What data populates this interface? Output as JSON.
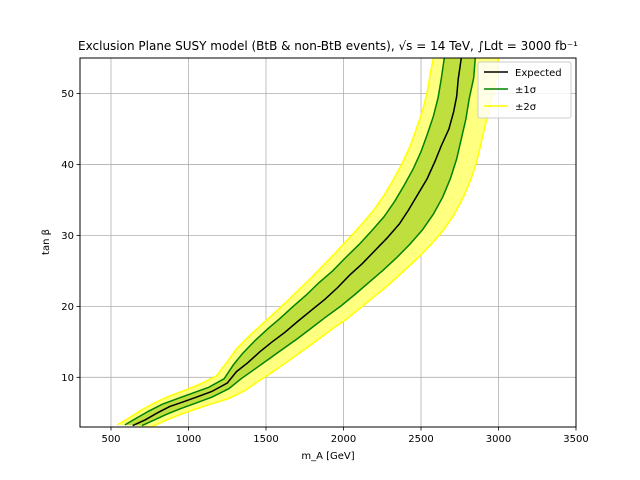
{
  "chart_data": {
    "type": "line",
    "title": "Exclusion Plane SUSY model (BtB & non-BtB events), √s = 14 TeV, ∫Ldt = 3000 fb⁻¹",
    "xlabel": "m_A [GeV]",
    "ylabel": "tan β",
    "xlim": [
      300,
      3500
    ],
    "ylim": [
      3,
      55
    ],
    "xticks": [
      500,
      1000,
      1500,
      2000,
      2500,
      3000,
      3500
    ],
    "yticks": [
      10,
      20,
      30,
      40,
      50
    ],
    "grid": true,
    "legend_position": "top-right",
    "series": [
      {
        "name": "Expected",
        "color": "#000000",
        "points": [
          [
            640,
            3.2
          ],
          [
            720,
            4.0
          ],
          [
            800,
            5.0
          ],
          [
            880,
            5.9
          ],
          [
            960,
            6.5
          ],
          [
            1050,
            7.2
          ],
          [
            1150,
            8.0
          ],
          [
            1250,
            9.2
          ],
          [
            1310,
            10.8
          ],
          [
            1380,
            12.0
          ],
          [
            1460,
            13.6
          ],
          [
            1540,
            15.0
          ],
          [
            1620,
            16.3
          ],
          [
            1700,
            17.8
          ],
          [
            1790,
            19.4
          ],
          [
            1880,
            21.0
          ],
          [
            1960,
            22.6
          ],
          [
            2040,
            24.4
          ],
          [
            2120,
            26.0
          ],
          [
            2200,
            27.8
          ],
          [
            2280,
            29.6
          ],
          [
            2360,
            31.6
          ],
          [
            2420,
            33.6
          ],
          [
            2480,
            35.8
          ],
          [
            2540,
            38.0
          ],
          [
            2590,
            40.4
          ],
          [
            2630,
            42.6
          ],
          [
            2680,
            45.0
          ],
          [
            2710,
            47.4
          ],
          [
            2730,
            49.6
          ],
          [
            2740,
            52.0
          ],
          [
            2760,
            55.0
          ]
        ]
      },
      {
        "name": "±1σ",
        "color": "#008000",
        "fill": "#bfdf3f",
        "lower_edge": [
          [
            700,
            3.2
          ],
          [
            780,
            4.0
          ],
          [
            860,
            4.8
          ],
          [
            950,
            5.6
          ],
          [
            1050,
            6.4
          ],
          [
            1150,
            7.2
          ],
          [
            1260,
            8.4
          ],
          [
            1340,
            9.8
          ],
          [
            1430,
            11.2
          ],
          [
            1520,
            12.6
          ],
          [
            1610,
            14.0
          ],
          [
            1700,
            15.4
          ],
          [
            1790,
            16.9
          ],
          [
            1880,
            18.4
          ],
          [
            1980,
            20.0
          ],
          [
            2070,
            21.6
          ],
          [
            2160,
            23.3
          ],
          [
            2250,
            25.0
          ],
          [
            2340,
            26.8
          ],
          [
            2430,
            28.8
          ],
          [
            2510,
            30.8
          ],
          [
            2580,
            33.0
          ],
          [
            2640,
            35.4
          ],
          [
            2690,
            38.0
          ],
          [
            2730,
            40.8
          ],
          [
            2760,
            43.6
          ],
          [
            2790,
            46.4
          ],
          [
            2810,
            49.2
          ],
          [
            2840,
            52.2
          ],
          [
            2850,
            55.0
          ]
        ],
        "upper_edge": [
          [
            590,
            3.3
          ],
          [
            660,
            4.2
          ],
          [
            740,
            5.2
          ],
          [
            830,
            6.2
          ],
          [
            930,
            7.0
          ],
          [
            1030,
            7.8
          ],
          [
            1130,
            8.6
          ],
          [
            1230,
            9.8
          ],
          [
            1290,
            11.8
          ],
          [
            1350,
            13.4
          ],
          [
            1430,
            15.2
          ],
          [
            1510,
            16.8
          ],
          [
            1590,
            18.3
          ],
          [
            1670,
            19.9
          ],
          [
            1760,
            21.6
          ],
          [
            1840,
            23.3
          ],
          [
            1930,
            25.0
          ],
          [
            2010,
            26.8
          ],
          [
            2100,
            28.7
          ],
          [
            2180,
            30.6
          ],
          [
            2260,
            32.6
          ],
          [
            2330,
            34.8
          ],
          [
            2390,
            37.0
          ],
          [
            2450,
            39.4
          ],
          [
            2500,
            41.8
          ],
          [
            2540,
            44.2
          ],
          [
            2580,
            46.8
          ],
          [
            2610,
            49.4
          ],
          [
            2630,
            52.0
          ],
          [
            2650,
            55.0
          ]
        ]
      },
      {
        "name": "±2σ",
        "color": "#ffff00",
        "fill": "#ffff80",
        "lower_edge": [
          [
            760,
            3.0
          ],
          [
            840,
            3.8
          ],
          [
            930,
            4.6
          ],
          [
            1030,
            5.4
          ],
          [
            1140,
            6.2
          ],
          [
            1260,
            7.0
          ],
          [
            1370,
            8.2
          ],
          [
            1460,
            9.6
          ],
          [
            1560,
            11.0
          ],
          [
            1650,
            12.4
          ],
          [
            1740,
            13.8
          ],
          [
            1830,
            15.2
          ],
          [
            1920,
            16.7
          ],
          [
            2020,
            18.2
          ],
          [
            2110,
            19.8
          ],
          [
            2200,
            21.4
          ],
          [
            2290,
            23.0
          ],
          [
            2380,
            24.8
          ],
          [
            2470,
            26.6
          ],
          [
            2560,
            28.6
          ],
          [
            2640,
            30.6
          ],
          [
            2710,
            32.8
          ],
          [
            2770,
            35.2
          ],
          [
            2820,
            37.8
          ],
          [
            2860,
            40.4
          ],
          [
            2890,
            43.2
          ],
          [
            2920,
            46.0
          ],
          [
            2950,
            48.8
          ],
          [
            2980,
            51.6
          ],
          [
            3000,
            55.0
          ]
        ],
        "upper_edge": [
          [
            540,
            3.3
          ],
          [
            610,
            4.2
          ],
          [
            690,
            5.3
          ],
          [
            780,
            6.4
          ],
          [
            880,
            7.4
          ],
          [
            980,
            8.2
          ],
          [
            1080,
            9.1
          ],
          [
            1180,
            10.2
          ],
          [
            1250,
            12.2
          ],
          [
            1310,
            14.0
          ],
          [
            1390,
            15.8
          ],
          [
            1470,
            17.4
          ],
          [
            1550,
            19.0
          ],
          [
            1630,
            20.6
          ],
          [
            1710,
            22.3
          ],
          [
            1790,
            24.0
          ],
          [
            1870,
            25.8
          ],
          [
            1950,
            27.6
          ],
          [
            2030,
            29.5
          ],
          [
            2110,
            31.4
          ],
          [
            2190,
            33.4
          ],
          [
            2260,
            35.6
          ],
          [
            2320,
            37.8
          ],
          [
            2380,
            40.2
          ],
          [
            2430,
            42.6
          ],
          [
            2470,
            45.0
          ],
          [
            2510,
            47.6
          ],
          [
            2540,
            50.2
          ],
          [
            2560,
            52.8
          ],
          [
            2580,
            55.0
          ]
        ]
      }
    ]
  }
}
